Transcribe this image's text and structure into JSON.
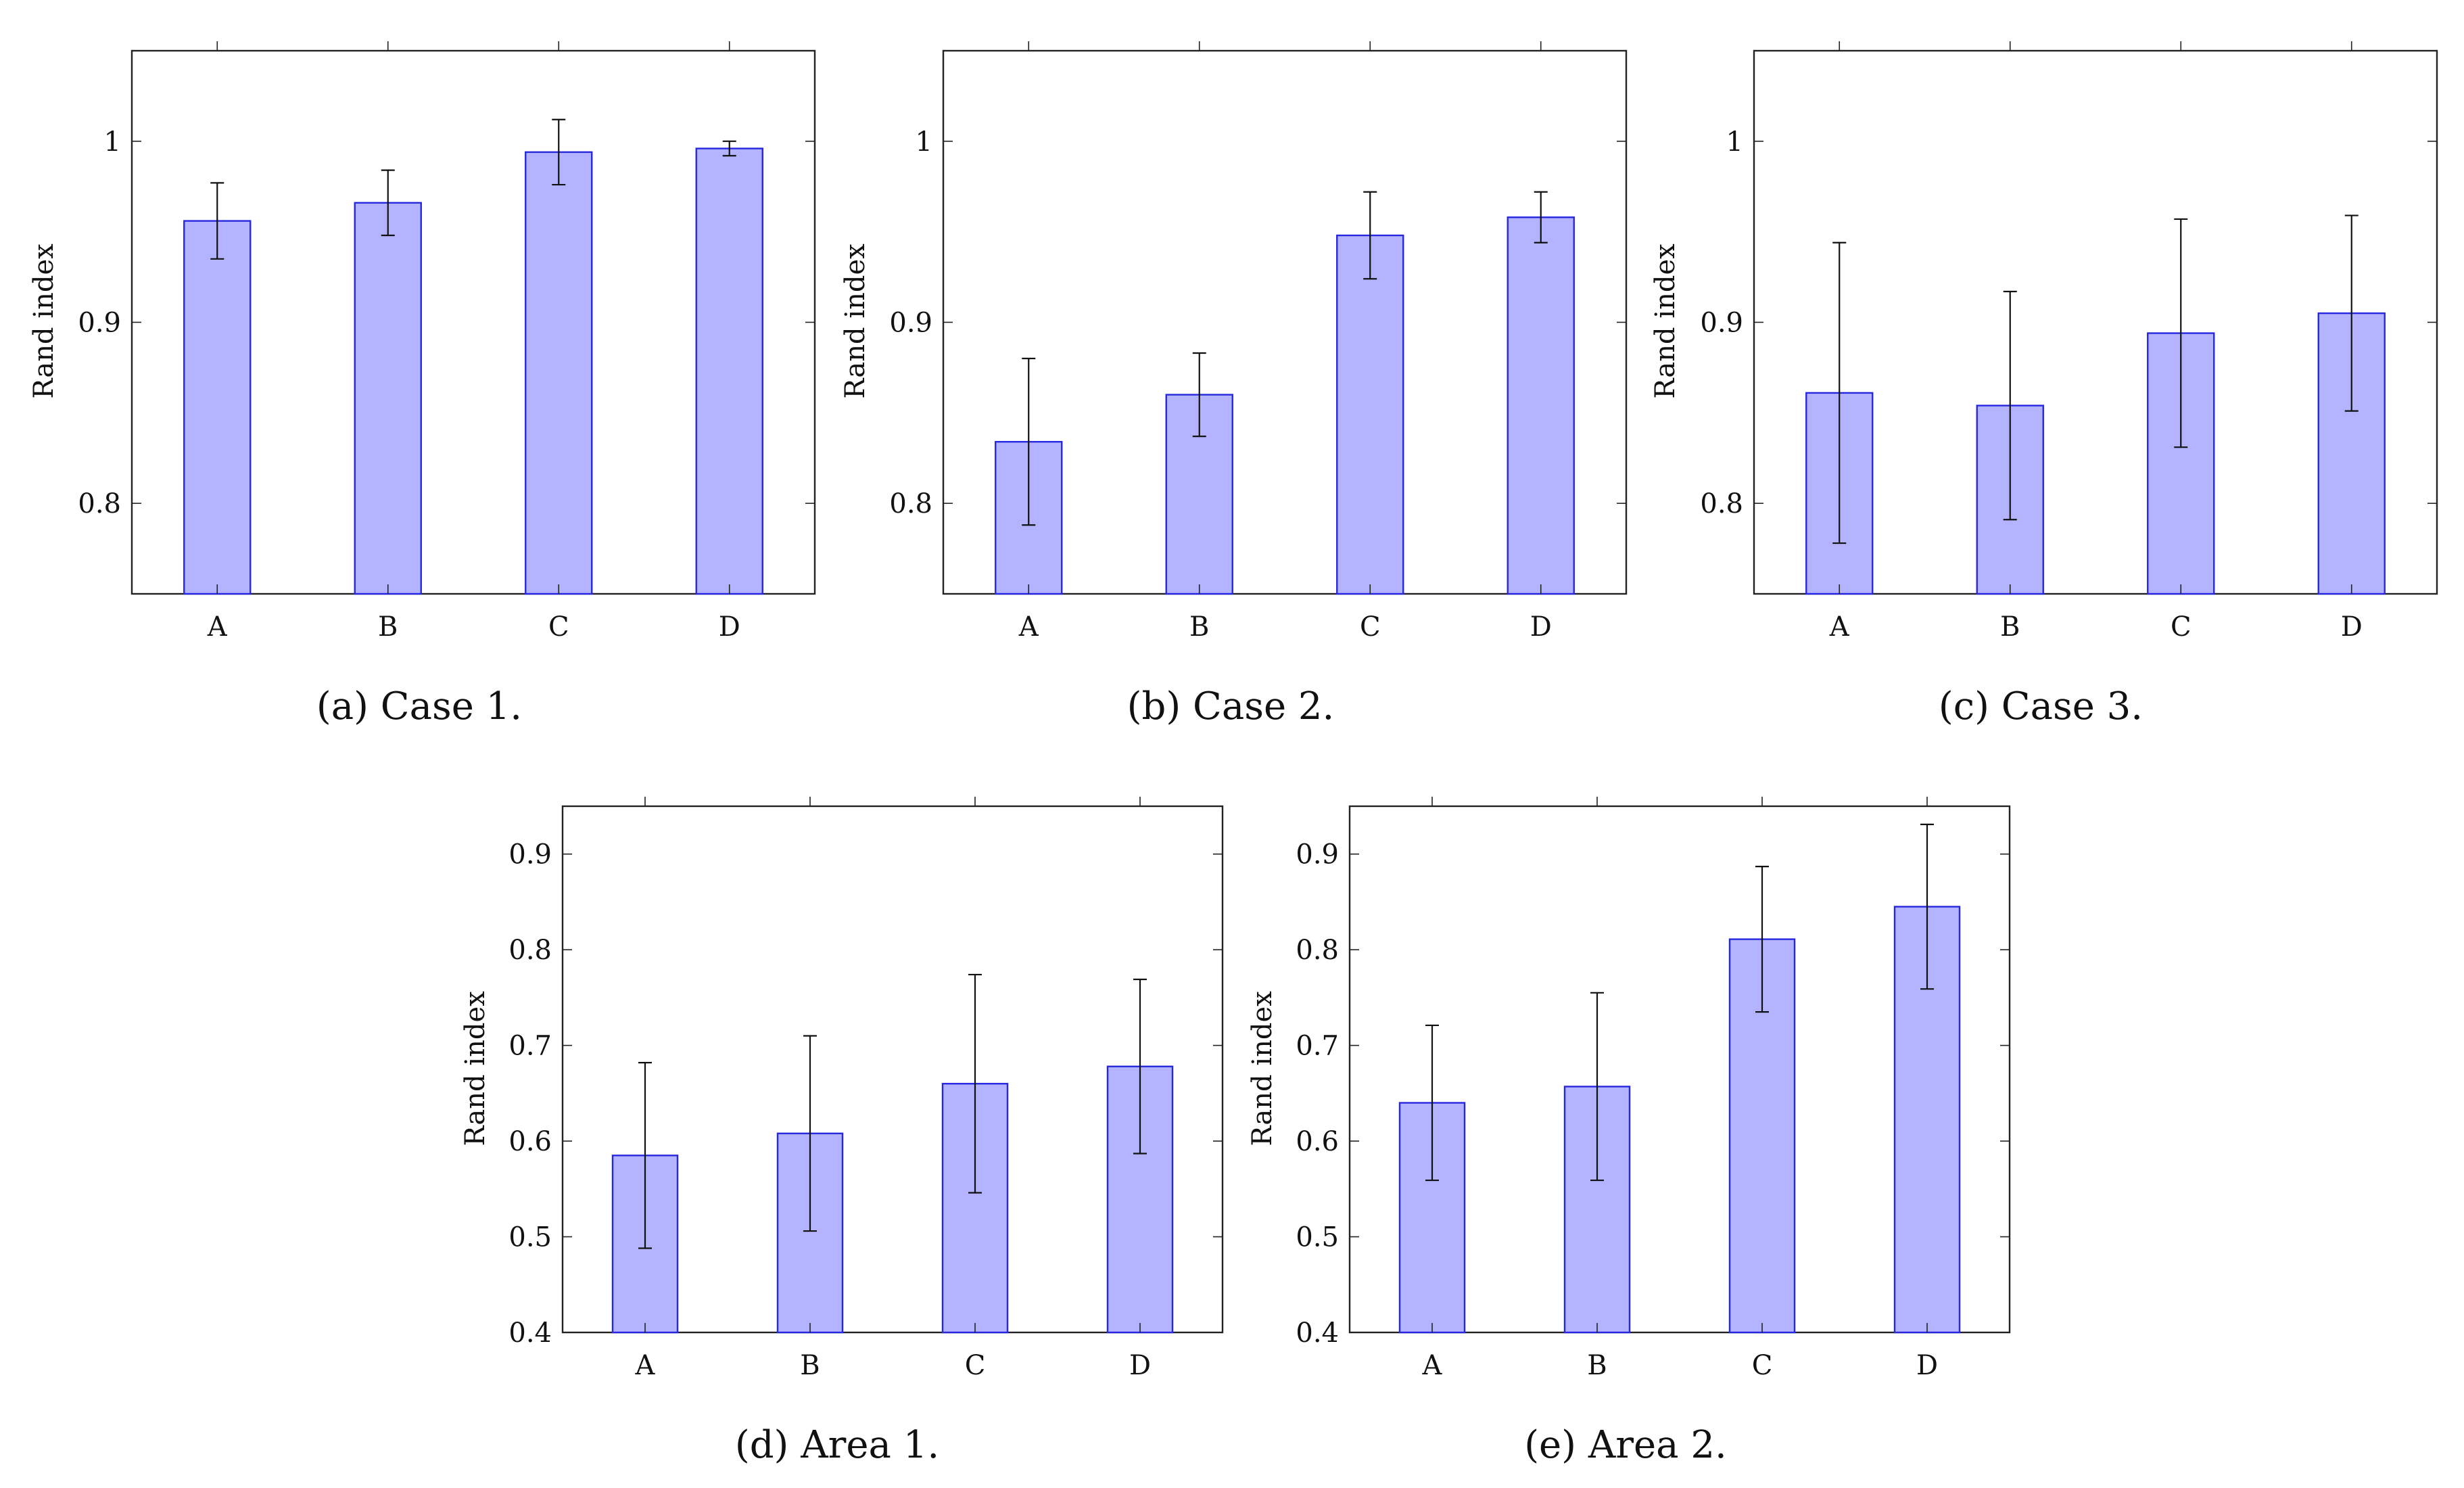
{
  "chart_data": [
    {
      "type": "bar",
      "caption": "(a)  Case 1.",
      "categories": [
        "A",
        "B",
        "C",
        "D"
      ],
      "values": [
        0.956,
        0.966,
        0.994,
        0.996
      ],
      "error": [
        0.021,
        0.018,
        0.018,
        0.004
      ],
      "ylabel": "Rand index",
      "ylim": [
        0.75,
        1.05
      ],
      "yticks": [
        0.8,
        0.9,
        1.0
      ],
      "ytick_labels": [
        "0.8",
        "0.9",
        "1"
      ],
      "grid": false,
      "bar_fill": "#b3b3ff",
      "bar_stroke": "#2727e0"
    },
    {
      "type": "bar",
      "caption": "(b)  Case 2.",
      "categories": [
        "A",
        "B",
        "C",
        "D"
      ],
      "values": [
        0.834,
        0.86,
        0.948,
        0.958
      ],
      "error": [
        0.046,
        0.023,
        0.024,
        0.014
      ],
      "ylabel": "Rand index",
      "ylim": [
        0.75,
        1.05
      ],
      "yticks": [
        0.8,
        0.9,
        1.0
      ],
      "ytick_labels": [
        "0.8",
        "0.9",
        "1"
      ],
      "grid": false,
      "bar_fill": "#b3b3ff",
      "bar_stroke": "#2727e0"
    },
    {
      "type": "bar",
      "caption": "(c)  Case 3.",
      "categories": [
        "A",
        "B",
        "C",
        "D"
      ],
      "values": [
        0.861,
        0.854,
        0.894,
        0.905
      ],
      "error": [
        0.083,
        0.063,
        0.063,
        0.054
      ],
      "ylabel": "Rand index",
      "ylim": [
        0.75,
        1.05
      ],
      "yticks": [
        0.8,
        0.9,
        1.0
      ],
      "ytick_labels": [
        "0.8",
        "0.9",
        "1"
      ],
      "grid": false,
      "bar_fill": "#b3b3ff",
      "bar_stroke": "#2727e0"
    },
    {
      "type": "bar",
      "caption": "(d)  Area 1.",
      "categories": [
        "A",
        "B",
        "C",
        "D"
      ],
      "values": [
        0.585,
        0.608,
        0.66,
        0.678
      ],
      "error": [
        0.097,
        0.102,
        0.114,
        0.091
      ],
      "ylabel": "Rand index",
      "ylim": [
        0.4,
        0.95
      ],
      "yticks": [
        0.4,
        0.5,
        0.6,
        0.7,
        0.8,
        0.9
      ],
      "ytick_labels": [
        "0.4",
        "0.5",
        "0.6",
        "0.7",
        "0.8",
        "0.9"
      ],
      "grid": false,
      "bar_fill": "#b3b3ff",
      "bar_stroke": "#2727e0"
    },
    {
      "type": "bar",
      "caption": "(e)  Area 2.",
      "categories": [
        "A",
        "B",
        "C",
        "D"
      ],
      "values": [
        0.64,
        0.657,
        0.811,
        0.845
      ],
      "error": [
        0.081,
        0.098,
        0.076,
        0.086
      ],
      "ylabel": "Rand index",
      "ylim": [
        0.4,
        0.95
      ],
      "yticks": [
        0.4,
        0.5,
        0.6,
        0.7,
        0.8,
        0.9
      ],
      "ytick_labels": [
        "0.4",
        "0.5",
        "0.6",
        "0.7",
        "0.8",
        "0.9"
      ],
      "grid": false,
      "bar_fill": "#b3b3ff",
      "bar_stroke": "#2727e0"
    }
  ]
}
